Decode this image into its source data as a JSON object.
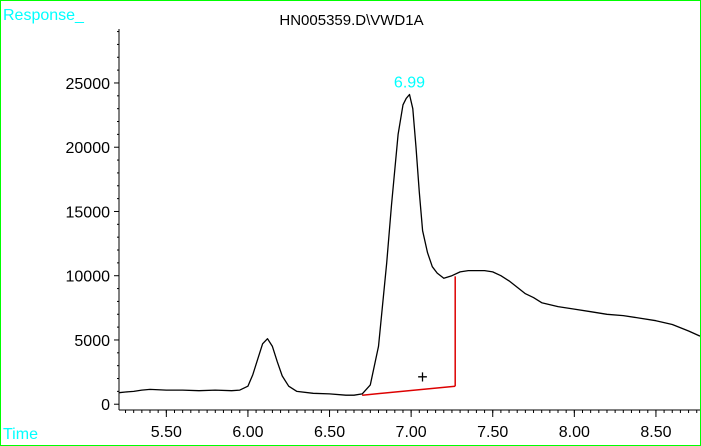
{
  "chart_data": {
    "type": "line",
    "title": "HN005359.D\\VWD1A",
    "ylabel": "Response_",
    "xlabel": "Time",
    "xlim": [
      5.21,
      8.77
    ],
    "ylim": [
      -450,
      29200
    ],
    "yticks": [
      0,
      5000,
      10000,
      15000,
      20000,
      25000
    ],
    "yticklabels": [
      "0",
      "5000",
      "10000",
      "15000",
      "20000",
      "25000"
    ],
    "xticks_major": [
      5.5,
      6.0,
      6.5,
      7.0,
      7.5,
      8.0,
      8.5
    ],
    "xticklabels": [
      "5.50",
      "6.00",
      "6.50",
      "7.00",
      "7.50",
      "8.00",
      "8.50"
    ],
    "xtick_minor_step": 0.05,
    "grid": false,
    "colors": {
      "trace": "#000000",
      "frame": "#00ff00",
      "corner_labels": "#00ffff",
      "peak_label": "#00ffff",
      "integration": "#dd0000"
    },
    "series": [
      {
        "x": [
          5.21,
          5.25,
          5.3,
          5.35,
          5.4,
          5.5,
          5.6,
          5.7,
          5.8,
          5.9,
          5.95,
          6.0,
          6.03,
          6.06,
          6.09,
          6.12,
          6.15,
          6.18,
          6.21,
          6.25,
          6.3,
          6.4,
          6.5,
          6.6,
          6.65,
          6.7,
          6.75,
          6.8,
          6.85,
          6.88,
          6.92,
          6.95,
          6.97,
          6.99,
          7.01,
          7.03,
          7.05,
          7.07,
          7.1,
          7.13,
          7.16,
          7.2,
          7.25,
          7.3,
          7.35,
          7.4,
          7.45,
          7.5,
          7.55,
          7.6,
          7.65,
          7.7,
          7.75,
          7.8,
          7.9,
          8.0,
          8.1,
          8.2,
          8.3,
          8.4,
          8.5,
          8.6,
          8.7,
          8.77
        ],
        "y": [
          900,
          950,
          1000,
          1100,
          1150,
          1100,
          1100,
          1050,
          1100,
          1050,
          1100,
          1400,
          2300,
          3500,
          4700,
          5100,
          4500,
          3300,
          2200,
          1400,
          1000,
          850,
          800,
          700,
          700,
          800,
          1500,
          4500,
          11000,
          15500,
          21000,
          23300,
          23800,
          24100,
          23000,
          20000,
          16500,
          13500,
          11800,
          10700,
          10200,
          9800,
          10000,
          10300,
          10400,
          10400,
          10400,
          10300,
          10000,
          9600,
          9100,
          8600,
          8300,
          7900,
          7600,
          7400,
          7200,
          7000,
          6900,
          6700,
          6500,
          6200,
          5700,
          5300
        ]
      }
    ],
    "peak_label": {
      "text": "6.99",
      "x": 6.99,
      "y": 24100
    },
    "integration": {
      "baseline": [
        [
          6.7,
          700
        ],
        [
          7.27,
          1400
        ]
      ],
      "drop": [
        [
          7.27,
          1400
        ],
        [
          7.27,
          9950
        ]
      ],
      "marker": {
        "text": "+",
        "x": 7.07,
        "y": 2100
      }
    }
  }
}
